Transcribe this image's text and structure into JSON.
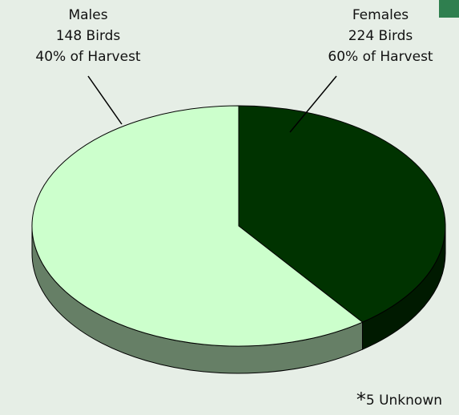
{
  "chart_data": {
    "type": "pie",
    "categories": [
      "Males",
      "Females"
    ],
    "values": [
      148,
      224
    ],
    "value_labels": [
      "148 Birds",
      "224 Birds"
    ],
    "share_labels": [
      "40% of Harvest",
      "60% of Harvest"
    ],
    "colors": [
      "#003300",
      "#ccffcc"
    ],
    "side_colors": [
      "#001a00",
      "#667f66"
    ],
    "note": {
      "marker": "*",
      "text": "5 Unknown"
    }
  }
}
